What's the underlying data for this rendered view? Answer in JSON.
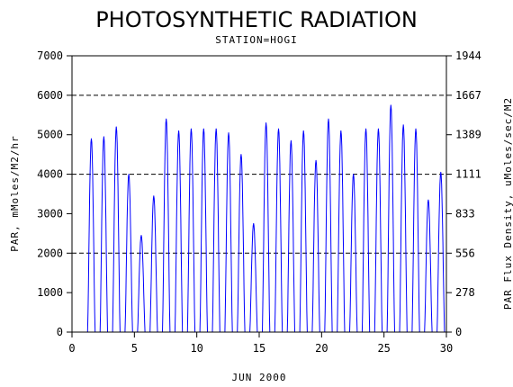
{
  "chart_data": {
    "type": "line",
    "title": "PHOTOSYNTHETIC RADIATION",
    "subtitle": "STATION=HOGI",
    "xlabel": "JUN 2000",
    "ylabel": "PAR, mMoles/M2/hr",
    "y2label": "PAR Flux Density, uMoles/sec/M2",
    "xlim": [
      0,
      30
    ],
    "ylim": [
      0,
      7000
    ],
    "x_ticks": [
      0,
      5,
      10,
      15,
      20,
      25,
      30
    ],
    "y_ticks": [
      0,
      1000,
      2000,
      3000,
      4000,
      5000,
      6000,
      7000
    ],
    "y2_ticks": [
      "0",
      "278",
      "556",
      "833",
      "1111",
      "1389",
      "1667",
      "1944"
    ],
    "reference_lines": [
      2000,
      4000,
      6000
    ],
    "colors": {
      "series": "#0000ff",
      "axes": "#000000"
    },
    "grid": false,
    "series": [
      {
        "daily_peaks": [
          {
            "day": 1,
            "peak": 4900
          },
          {
            "day": 2,
            "peak": 4950
          },
          {
            "day": 3,
            "peak": 5200
          },
          {
            "day": 4,
            "peak": 4000
          },
          {
            "day": 5,
            "peak": 2450
          },
          {
            "day": 6,
            "peak": 3450
          },
          {
            "day": 7,
            "peak": 5400
          },
          {
            "day": 8,
            "peak": 5100
          },
          {
            "day": 9,
            "peak": 5150
          },
          {
            "day": 10,
            "peak": 5150
          },
          {
            "day": 11,
            "peak": 5150
          },
          {
            "day": 12,
            "peak": 5050
          },
          {
            "day": 13,
            "peak": 4500
          },
          {
            "day": 14,
            "peak": 2750
          },
          {
            "day": 15,
            "peak": 5300
          },
          {
            "day": 16,
            "peak": 5150
          },
          {
            "day": 17,
            "peak": 4850
          },
          {
            "day": 18,
            "peak": 5100
          },
          {
            "day": 19,
            "peak": 4350
          },
          {
            "day": 20,
            "peak": 5400
          },
          {
            "day": 21,
            "peak": 5100
          },
          {
            "day": 22,
            "peak": 4000
          },
          {
            "day": 23,
            "peak": 5150
          },
          {
            "day": 24,
            "peak": 5150
          },
          {
            "day": 25,
            "peak": 5750
          },
          {
            "day": 26,
            "peak": 5250
          },
          {
            "day": 27,
            "peak": 5150
          },
          {
            "day": 28,
            "peak": 3350
          },
          {
            "day": 29,
            "peak": 4050
          }
        ]
      }
    ]
  }
}
